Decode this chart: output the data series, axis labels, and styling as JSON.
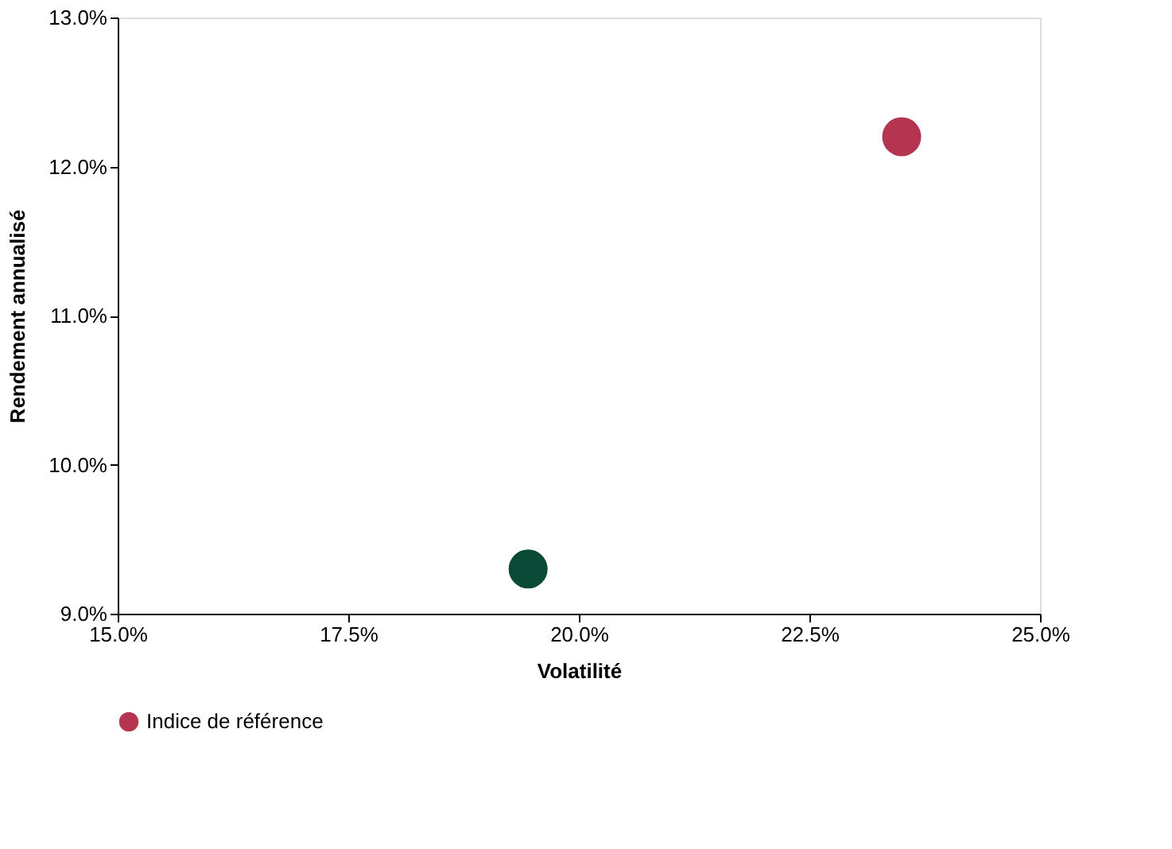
{
  "chart_data": {
    "type": "scatter",
    "xlabel": "Volatilité",
    "ylabel": "Rendement annualisé",
    "series": [
      {
        "color": "#0b4a36",
        "x": [
          19.45
        ],
        "values": [
          9.3
        ]
      },
      {
        "name": "Indice de référence",
        "color": "#b5344f",
        "x": [
          23.5
        ],
        "values": [
          12.2
        ]
      }
    ],
    "xlim": [
      15,
      25
    ],
    "xticks": [
      {
        "value": 15,
        "label": "15.0%"
      },
      {
        "value": 17.5,
        "label": "17.5%"
      },
      {
        "value": 20,
        "label": "20.0%"
      },
      {
        "value": 22.5,
        "label": "22.5%"
      },
      {
        "value": 25,
        "label": "25.0%"
      }
    ],
    "ylim": [
      9,
      13
    ],
    "yticks": [
      {
        "value": 9,
        "label": "9.0%"
      },
      {
        "value": 10,
        "label": "10.0%"
      },
      {
        "value": 11,
        "label": "11.0%"
      },
      {
        "value": 12,
        "label": "12.0%"
      },
      {
        "value": 13,
        "label": "13.0%"
      }
    ],
    "marker": "circle",
    "grid": false,
    "legend": "bottom"
  }
}
